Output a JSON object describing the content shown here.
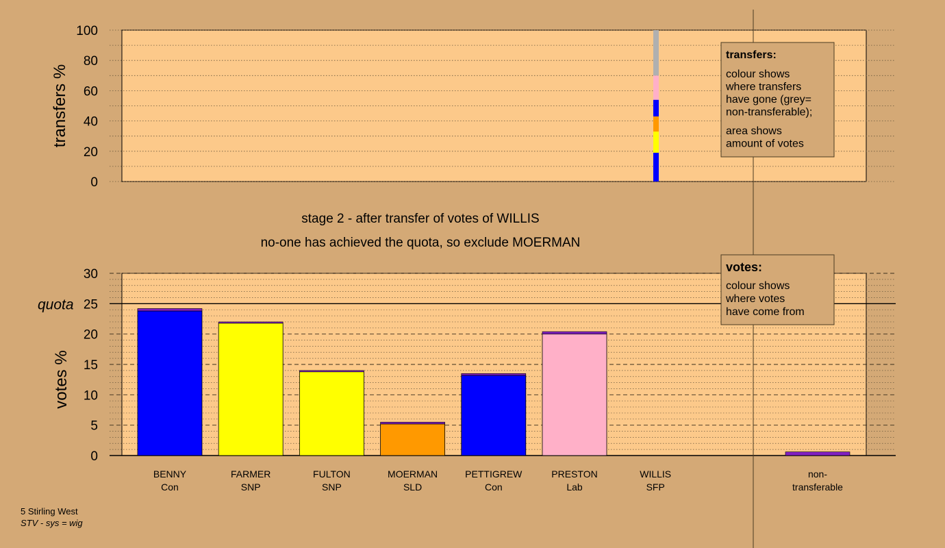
{
  "colors": {
    "background": "#d4a976",
    "plot_fill": "#fcc98a",
    "con": "#0000ff",
    "snp": "#ffff00",
    "sld": "#ff9900",
    "lab": "#ffb0c8",
    "sfp": "#7f00ff",
    "non_transferable": "#b0b0b0",
    "purple": "#8020c0"
  },
  "chart_data": [
    {
      "type": "bar",
      "name": "transfers",
      "ylabel": "transfers %",
      "ylim": [
        0,
        100
      ],
      "yticks": [
        "0",
        "20",
        "40",
        "60",
        "80",
        "100"
      ],
      "ytick_values": [
        0,
        20,
        40,
        60,
        80,
        100
      ],
      "stack_note": "single stacked column from bottom to top",
      "segments": [
        {
          "party": "Con",
          "candidate": "PETTIGREW",
          "value": 19,
          "color": "#0000ff"
        },
        {
          "party": "SNP",
          "candidate": "FULTON",
          "value": 14,
          "color": "#ffff00"
        },
        {
          "party": "SLD",
          "candidate": "MOERMAN",
          "value": 10,
          "color": "#ff9900"
        },
        {
          "party": "Con",
          "candidate": "BENNY",
          "value": 11,
          "color": "#0000ff"
        },
        {
          "party": "Lab",
          "candidate": "PRESTON",
          "value": 16,
          "color": "#ffb0c8"
        },
        {
          "party": "non-transferable",
          "candidate": "non-transferable",
          "value": 30,
          "color": "#b0b0b0"
        }
      ],
      "legend_box": {
        "title": "transfers:",
        "lines1": [
          "colour shows",
          "where transfers",
          "have gone (grey=",
          "non-transferable);"
        ],
        "lines2": [
          "area shows",
          "amount of votes"
        ]
      }
    },
    {
      "type": "bar",
      "name": "votes",
      "ylabel": "votes %",
      "ylim": [
        0,
        30
      ],
      "yticks": [
        "0",
        "5",
        "10",
        "15",
        "20",
        "25",
        "30"
      ],
      "ytick_values": [
        0,
        5,
        10,
        15,
        20,
        25,
        30
      ],
      "quota_label": "quota",
      "quota": 25,
      "categories": [
        {
          "name": "BENNY",
          "party": "Con",
          "base": 23.8,
          "base_color": "#0000ff",
          "transfer": 0.4
        },
        {
          "name": "FARMER",
          "party": "SNP",
          "base": 21.8,
          "base_color": "#ffff00",
          "transfer": 0.2
        },
        {
          "name": "FULTON",
          "party": "SNP",
          "base": 13.8,
          "base_color": "#ffff00",
          "transfer": 0.2
        },
        {
          "name": "MOERMAN",
          "party": "SLD",
          "base": 5.2,
          "base_color": "#ff9900",
          "transfer": 0.3
        },
        {
          "name": "PETTIGREW",
          "party": "Con",
          "base": 13.2,
          "base_color": "#0000ff",
          "transfer": 0.3
        },
        {
          "name": "PRESTON",
          "party": "Lab",
          "base": 20.0,
          "base_color": "#ffb0c8",
          "transfer": 0.4
        },
        {
          "name": "WILLIS",
          "party": "SFP",
          "base": 0,
          "base_color": "#7f00ff",
          "transfer": 0
        }
      ],
      "non_transferable": {
        "label1": "non-",
        "label2": "transferable",
        "value": 0.6
      },
      "legend_box": {
        "title": "votes:",
        "lines": [
          "colour shows",
          "where votes",
          "have come from"
        ]
      }
    }
  ],
  "stage_title": "stage 2 - after transfer of votes of WILLIS",
  "stage_subtitle": "no-one has achieved the quota, so exclude MOERMAN",
  "footer": {
    "line1": "5 Stirling West",
    "line2": "STV - sys = wig"
  }
}
